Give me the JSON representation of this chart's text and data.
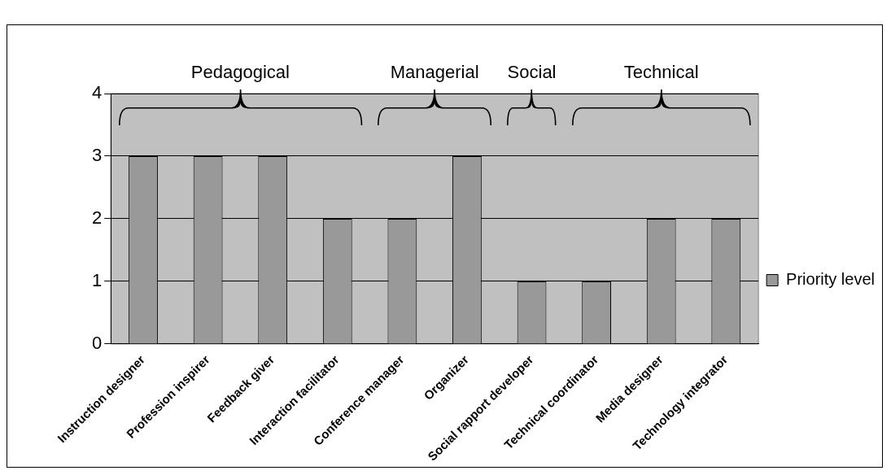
{
  "chart_data": {
    "type": "bar",
    "categories": [
      "Instruction designer",
      "Profession inspirer",
      "Feedback giver",
      "Interaction facilitator",
      "Conference manager",
      "Organizer",
      "Social rapport developer",
      "Technical coordinator",
      "Media designer",
      "Technology integrator"
    ],
    "series": [
      {
        "name": "Priority level",
        "color": "#999999",
        "values": [
          3,
          3,
          3,
          2,
          2,
          3,
          1,
          1,
          2,
          2
        ]
      }
    ],
    "ylim": [
      0,
      4
    ],
    "yticks": [
      0,
      1,
      2,
      3,
      4
    ],
    "grid": "y",
    "legend": "right",
    "annotations": [
      "Pedagogical",
      "Managerial",
      "Social",
      "Technical"
    ]
  }
}
